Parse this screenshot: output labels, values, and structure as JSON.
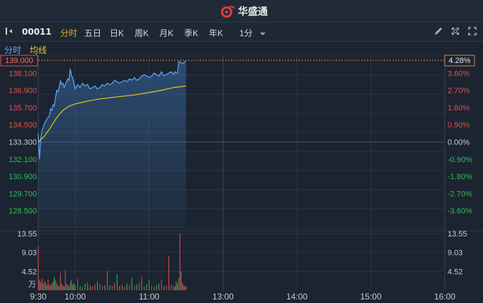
{
  "brand": {
    "name": "华盛通"
  },
  "toolbar": {
    "symbol": "00011",
    "periods": [
      "分时",
      "五日",
      "日K",
      "周K",
      "月K",
      "季K",
      "年K"
    ],
    "interval": "1分"
  },
  "subtabs": {
    "intraday": "分时",
    "avg_line": "均线"
  },
  "chart_data": [
    {
      "type": "line",
      "title": "",
      "current_price_label": "139.000",
      "current_pct_label": "4.28%",
      "y_ticks_left": [
        "138.100",
        "136.900",
        "135.700",
        "134.500",
        "133.300",
        "132.100",
        "130.900",
        "129.700",
        "128.500"
      ],
      "y_ticks_right": [
        "3.60%",
        "2.70%",
        "1.80%",
        "0.90%",
        "0.00%",
        "-0.90%",
        "-1.80%",
        "-2.70%",
        "-3.60%"
      ],
      "ylim": [
        127.3,
        139.3
      ],
      "base_price": 133.3,
      "x_ticks": [
        "9:30",
        "10:00",
        "11:00",
        "13:00",
        "14:00",
        "15:00",
        "16:00"
      ],
      "x_tick_minutes": [
        0,
        30,
        90,
        150,
        210,
        270,
        330
      ],
      "x_range_minutes": [
        0,
        330
      ],
      "series": [
        {
          "role": "price",
          "color": "#5aa9ff",
          "x": [
            0,
            1,
            2,
            3,
            4,
            5,
            6,
            7,
            8,
            9,
            10,
            11,
            12,
            13,
            14,
            15,
            16,
            17,
            18,
            19,
            20,
            21,
            22,
            23,
            24,
            25,
            26,
            27,
            28,
            29,
            30,
            32,
            34,
            36,
            38,
            40,
            42,
            44,
            46,
            48,
            50,
            52,
            54,
            56,
            58,
            60,
            62,
            64,
            66,
            68,
            70,
            72,
            74,
            76,
            78,
            80,
            82,
            84,
            86,
            88,
            90,
            92,
            94,
            96,
            98,
            100,
            102,
            104,
            106,
            108,
            110,
            111,
            112,
            113,
            114,
            115,
            116,
            117,
            118,
            119,
            120
          ],
          "values": [
            133.9,
            132.1,
            133.5,
            134.1,
            134.3,
            134.6,
            134.7,
            134.9,
            135.0,
            135.1,
            135.6,
            135.5,
            135.9,
            135.8,
            136.4,
            136.9,
            136.8,
            137.1,
            137.6,
            137.3,
            137.4,
            137.1,
            137.3,
            137.5,
            137.7,
            137.6,
            138.4,
            137.9,
            137.8,
            137.4,
            137.0,
            137.3,
            137.1,
            137.4,
            137.2,
            137.3,
            137.0,
            137.1,
            137.2,
            137.0,
            137.1,
            137.3,
            137.2,
            137.4,
            137.3,
            137.4,
            137.6,
            137.5,
            137.4,
            137.5,
            137.6,
            137.5,
            137.7,
            137.6,
            137.8,
            137.6,
            137.7,
            137.9,
            138.0,
            137.9,
            137.8,
            137.9,
            138.1,
            138.0,
            137.9,
            138.2,
            137.9,
            138.0,
            138.1,
            138.2,
            138.0,
            138.2,
            138.1,
            138.1,
            138.9,
            138.9,
            138.8,
            138.8,
            138.8,
            138.9,
            139.0
          ]
        },
        {
          "role": "average",
          "color": "#f0c419",
          "x": [
            0,
            5,
            10,
            15,
            20,
            25,
            30,
            40,
            50,
            60,
            70,
            80,
            90,
            100,
            110,
            120
          ],
          "values": [
            133.3,
            133.7,
            134.3,
            135.0,
            135.5,
            135.8,
            135.95,
            136.15,
            136.3,
            136.4,
            136.5,
            136.6,
            136.75,
            136.9,
            137.1,
            137.2
          ]
        }
      ]
    },
    {
      "type": "bar",
      "title": "",
      "unit": "万",
      "y_ticks": [
        "13.55",
        "9.03",
        "4.52"
      ],
      "ylim": [
        0,
        13.55
      ],
      "x_range_minutes": [
        0,
        330
      ],
      "up_color": "#e84d4d",
      "down_color": "#2fbf5a",
      "series": [
        {
          "role": "volume",
          "x": [
            0,
            1,
            2,
            3,
            4,
            5,
            6,
            7,
            8,
            9,
            10,
            11,
            12,
            13,
            14,
            15,
            16,
            17,
            18,
            19,
            20,
            21,
            22,
            23,
            24,
            25,
            26,
            27,
            28,
            29,
            30,
            32,
            34,
            36,
            38,
            40,
            42,
            44,
            46,
            48,
            50,
            52,
            54,
            56,
            58,
            60,
            62,
            64,
            66,
            68,
            70,
            72,
            74,
            76,
            78,
            80,
            82,
            84,
            86,
            88,
            90,
            92,
            94,
            96,
            98,
            100,
            102,
            104,
            106,
            108,
            110,
            111,
            112,
            113,
            114,
            115,
            116,
            117,
            118,
            119,
            120
          ],
          "values": [
            10.5,
            2.5,
            2.0,
            2.8,
            1.5,
            2.2,
            1.8,
            1.2,
            2.6,
            1.4,
            1.0,
            1.6,
            2.0,
            3.1,
            2.4,
            1.8,
            1.2,
            0.9,
            4.2,
            1.6,
            1.1,
            0.8,
            4.8,
            1.5,
            1.4,
            1.0,
            1.9,
            2.5,
            1.3,
            1.6,
            1.1,
            2.7,
            1.0,
            0.8,
            1.5,
            1.9,
            1.2,
            1.0,
            1.4,
            2.2,
            1.6,
            1.1,
            1.2,
            4.6,
            1.3,
            1.0,
            1.8,
            3.9,
            1.0,
            1.3,
            0.9,
            1.6,
            1.2,
            2.9,
            1.0,
            1.4,
            1.8,
            3.2,
            0.9,
            1.5,
            2.4,
            1.1,
            0.8,
            1.3,
            1.6,
            2.5,
            1.0,
            1.2,
            8.3,
            1.4,
            1.0,
            0.9,
            2.1,
            1.5,
            3.0,
            13.5,
            4.5,
            1.8,
            1.2,
            1.0,
            0.9
          ],
          "direction": [
            "up",
            "down",
            "up",
            "up",
            "down",
            "up",
            "up",
            "down",
            "up",
            "down",
            "up",
            "down",
            "up",
            "down",
            "up",
            "up",
            "down",
            "up",
            "up",
            "down",
            "up",
            "down",
            "up",
            "up",
            "up",
            "down",
            "up",
            "down",
            "down",
            "down",
            "down",
            "up",
            "down",
            "up",
            "down",
            "up",
            "down",
            "up",
            "up",
            "down",
            "up",
            "up",
            "down",
            "up",
            "down",
            "up",
            "up",
            "down",
            "down",
            "up",
            "up",
            "down",
            "up",
            "down",
            "up",
            "down",
            "up",
            "up",
            "up",
            "down",
            "down",
            "up",
            "up",
            "down",
            "down",
            "up",
            "down",
            "up",
            "up",
            "up",
            "down",
            "up",
            "down",
            "up",
            "up",
            "up",
            "down",
            "up",
            "down",
            "up",
            "up"
          ]
        }
      ]
    }
  ]
}
